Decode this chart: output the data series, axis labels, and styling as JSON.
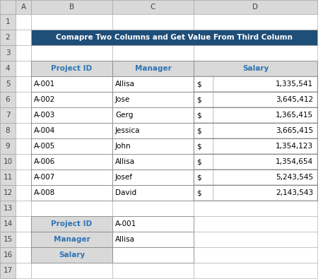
{
  "title": "Comapre Two Columns and Get Value From Third Column",
  "title_bg": "#1F4E79",
  "title_fg": "#FFFFFF",
  "header_bg": "#D9D9D9",
  "header_fg": "#2E74B5",
  "row_bg": "#FFFFFF",
  "border_color": "#888888",
  "row_labels": [
    "2",
    "3",
    "4",
    "5",
    "6",
    "7",
    "8",
    "9",
    "10",
    "11",
    "12",
    "13",
    "14",
    "15",
    "16",
    "17"
  ],
  "col_labels": [
    "A",
    "B",
    "C",
    "D"
  ],
  "main_table_headers": [
    "Project ID",
    "Manager",
    "Salary"
  ],
  "main_table_data": [
    [
      "A-001",
      "Allisa",
      "$",
      "1,335,541"
    ],
    [
      "A-002",
      "Jose",
      "$",
      "3,645,412"
    ],
    [
      "A-003",
      "Gerg",
      "$",
      "1,365,415"
    ],
    [
      "A-004",
      "Jessica",
      "$",
      "3,665,415"
    ],
    [
      "A-005",
      "John",
      "$",
      "1,354,123"
    ],
    [
      "A-006",
      "Allisa",
      "$",
      "1,354,654"
    ],
    [
      "A-007",
      "Josef",
      "$",
      "5,243,545"
    ],
    [
      "A-008",
      "David",
      "$",
      "2,143,543"
    ]
  ],
  "lookup_labels": [
    "Project ID",
    "Manager",
    "Salary"
  ],
  "lookup_values": [
    "A-001",
    "Allisa",
    ""
  ],
  "lookup_header_bg": "#D9D9D9",
  "lookup_header_fg": "#2E74B5",
  "fig_bg": "#FFFFFF",
  "cell_bg_alt": "#FFFFFF",
  "grid_color": "#AAAAAA"
}
